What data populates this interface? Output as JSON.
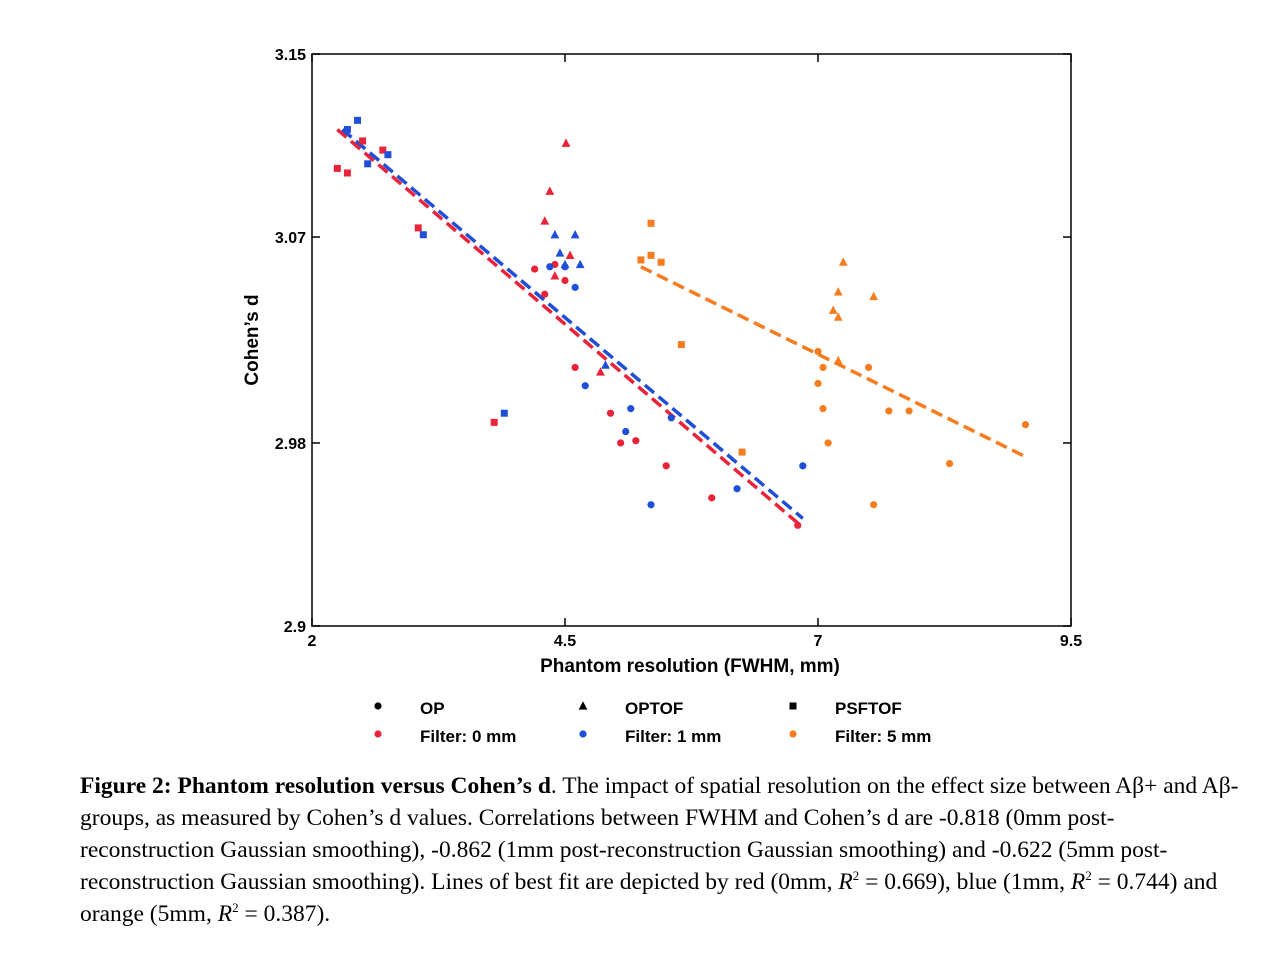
{
  "chart_data": {
    "type": "scatter",
    "xlabel": "Phantom resolution (FWHM, mm)",
    "ylabel": "Cohen’s d",
    "xlim": [
      2,
      9.5
    ],
    "ylim": [
      2.9,
      3.15
    ],
    "xticks": [
      "2",
      "4.5",
      "7",
      "9.5"
    ],
    "yticks": [
      "3.15",
      "3.07",
      "2.98",
      "2.9"
    ],
    "grid": false,
    "legend_position": "bottom",
    "colors": {
      "filter_0mm": "#e8233a",
      "filter_1mm": "#1f4fd6",
      "filter_5mm": "#f57c1f",
      "marker_key": "#000000"
    },
    "legend": {
      "shapes": [
        {
          "label": "OP",
          "marker": "circle"
        },
        {
          "label": "OPTOF",
          "marker": "triangle"
        },
        {
          "label": "PSFTOF",
          "marker": "square"
        }
      ],
      "filters": [
        {
          "label": "Filter: 0 mm",
          "color": "#e8233a"
        },
        {
          "label": "Filter: 1 mm",
          "color": "#1f4fd6"
        },
        {
          "label": "Filter: 5 mm",
          "color": "#f57c1f"
        }
      ]
    },
    "series": [
      {
        "filter": "0 mm",
        "color": "#e8233a",
        "fit": {
          "x": [
            2.25,
            6.8
          ],
          "y": [
            3.117,
            2.945
          ]
        },
        "points": [
          {
            "m": "square",
            "x": 2.25,
            "y": 3.1
          },
          {
            "m": "square",
            "x": 2.35,
            "y": 3.098
          },
          {
            "m": "square",
            "x": 2.5,
            "y": 3.112
          },
          {
            "m": "square",
            "x": 2.7,
            "y": 3.108
          },
          {
            "m": "square",
            "x": 3.05,
            "y": 3.074
          },
          {
            "m": "square",
            "x": 3.8,
            "y": 2.989
          },
          {
            "m": "triangle",
            "x": 4.3,
            "y": 3.077
          },
          {
            "m": "triangle",
            "x": 4.35,
            "y": 3.09
          },
          {
            "m": "triangle",
            "x": 4.51,
            "y": 3.111
          },
          {
            "m": "triangle",
            "x": 4.55,
            "y": 3.062
          },
          {
            "m": "triangle",
            "x": 4.4,
            "y": 3.053
          },
          {
            "m": "triangle",
            "x": 4.85,
            "y": 3.011
          },
          {
            "m": "circle",
            "x": 4.2,
            "y": 3.056
          },
          {
            "m": "circle",
            "x": 4.4,
            "y": 3.058
          },
          {
            "m": "circle",
            "x": 4.3,
            "y": 3.045
          },
          {
            "m": "circle",
            "x": 4.5,
            "y": 3.051
          },
          {
            "m": "circle",
            "x": 4.6,
            "y": 3.013
          },
          {
            "m": "circle",
            "x": 4.95,
            "y": 2.993
          },
          {
            "m": "circle",
            "x": 5.05,
            "y": 2.98
          },
          {
            "m": "circle",
            "x": 5.2,
            "y": 2.981
          },
          {
            "m": "circle",
            "x": 5.5,
            "y": 2.97
          },
          {
            "m": "circle",
            "x": 5.95,
            "y": 2.956
          },
          {
            "m": "circle",
            "x": 6.8,
            "y": 2.944
          }
        ]
      },
      {
        "filter": "1 mm",
        "color": "#1f4fd6",
        "fit": {
          "x": [
            2.3,
            6.85
          ],
          "y": [
            3.117,
            2.947
          ]
        },
        "points": [
          {
            "m": "square",
            "x": 2.45,
            "y": 3.121
          },
          {
            "m": "square",
            "x": 2.35,
            "y": 3.117
          },
          {
            "m": "square",
            "x": 2.55,
            "y": 3.102
          },
          {
            "m": "square",
            "x": 2.75,
            "y": 3.106
          },
          {
            "m": "square",
            "x": 3.1,
            "y": 3.071
          },
          {
            "m": "square",
            "x": 3.9,
            "y": 2.993
          },
          {
            "m": "triangle",
            "x": 4.4,
            "y": 3.071
          },
          {
            "m": "triangle",
            "x": 4.45,
            "y": 3.063
          },
          {
            "m": "triangle",
            "x": 4.5,
            "y": 3.058
          },
          {
            "m": "triangle",
            "x": 4.6,
            "y": 3.071
          },
          {
            "m": "triangle",
            "x": 4.65,
            "y": 3.058
          },
          {
            "m": "triangle",
            "x": 4.9,
            "y": 3.014
          },
          {
            "m": "circle",
            "x": 4.35,
            "y": 3.057
          },
          {
            "m": "circle",
            "x": 4.5,
            "y": 3.057
          },
          {
            "m": "circle",
            "x": 4.6,
            "y": 3.048
          },
          {
            "m": "circle",
            "x": 4.7,
            "y": 3.005
          },
          {
            "m": "circle",
            "x": 5.1,
            "y": 2.985
          },
          {
            "m": "circle",
            "x": 5.15,
            "y": 2.995
          },
          {
            "m": "circle",
            "x": 5.35,
            "y": 2.953
          },
          {
            "m": "circle",
            "x": 5.55,
            "y": 2.991
          },
          {
            "m": "circle",
            "x": 6.2,
            "y": 2.96
          },
          {
            "m": "circle",
            "x": 6.85,
            "y": 2.97
          }
        ]
      },
      {
        "filter": "5 mm",
        "color": "#f57c1f",
        "fit": {
          "x": [
            5.25,
            9.05
          ],
          "y": [
            3.057,
            2.974
          ]
        },
        "points": [
          {
            "m": "square",
            "x": 5.25,
            "y": 3.06
          },
          {
            "m": "square",
            "x": 5.35,
            "y": 3.076
          },
          {
            "m": "square",
            "x": 5.35,
            "y": 3.062
          },
          {
            "m": "square",
            "x": 5.45,
            "y": 3.059
          },
          {
            "m": "square",
            "x": 5.65,
            "y": 3.023
          },
          {
            "m": "square",
            "x": 6.25,
            "y": 2.976
          },
          {
            "m": "triangle",
            "x": 7.25,
            "y": 3.059
          },
          {
            "m": "triangle",
            "x": 7.2,
            "y": 3.046
          },
          {
            "m": "triangle",
            "x": 7.55,
            "y": 3.044
          },
          {
            "m": "triangle",
            "x": 7.15,
            "y": 3.038
          },
          {
            "m": "triangle",
            "x": 7.2,
            "y": 3.035
          },
          {
            "m": "triangle",
            "x": 7.2,
            "y": 3.016
          },
          {
            "m": "circle",
            "x": 7.0,
            "y": 3.02
          },
          {
            "m": "circle",
            "x": 7.05,
            "y": 3.013
          },
          {
            "m": "circle",
            "x": 7.0,
            "y": 3.006
          },
          {
            "m": "circle",
            "x": 7.05,
            "y": 2.995
          },
          {
            "m": "circle",
            "x": 7.1,
            "y": 2.98
          },
          {
            "m": "circle",
            "x": 7.5,
            "y": 3.013
          },
          {
            "m": "circle",
            "x": 7.7,
            "y": 2.994
          },
          {
            "m": "circle",
            "x": 7.9,
            "y": 2.994
          },
          {
            "m": "circle",
            "x": 8.3,
            "y": 2.971
          },
          {
            "m": "circle",
            "x": 7.55,
            "y": 2.953
          },
          {
            "m": "circle",
            "x": 9.05,
            "y": 2.988
          }
        ]
      }
    ]
  },
  "caption": {
    "bold": "Figure 2: Phantom resolution versus Cohen’s d",
    "text_1": ". The impact of spatial resolution on the effect size between Aβ+ and Aβ- groups, as measured by Cohen’s d values. Correlations between FWHM and Cohen’s d are -0.818 (0mm post-reconstruction Gaussian smoothing), -0.862 (1mm post-reconstruction Gaussian smoothing) and -0.622 (5mm post-reconstruction Gaussian smoothing). Lines of best fit are depicted by red (0mm, ",
    "r_letter": "R",
    "sup": "2",
    "text_2": " = 0.669), blue (1mm, ",
    "text_3": " = 0.744) and orange (5mm, ",
    "text_4": " = 0.387)."
  }
}
